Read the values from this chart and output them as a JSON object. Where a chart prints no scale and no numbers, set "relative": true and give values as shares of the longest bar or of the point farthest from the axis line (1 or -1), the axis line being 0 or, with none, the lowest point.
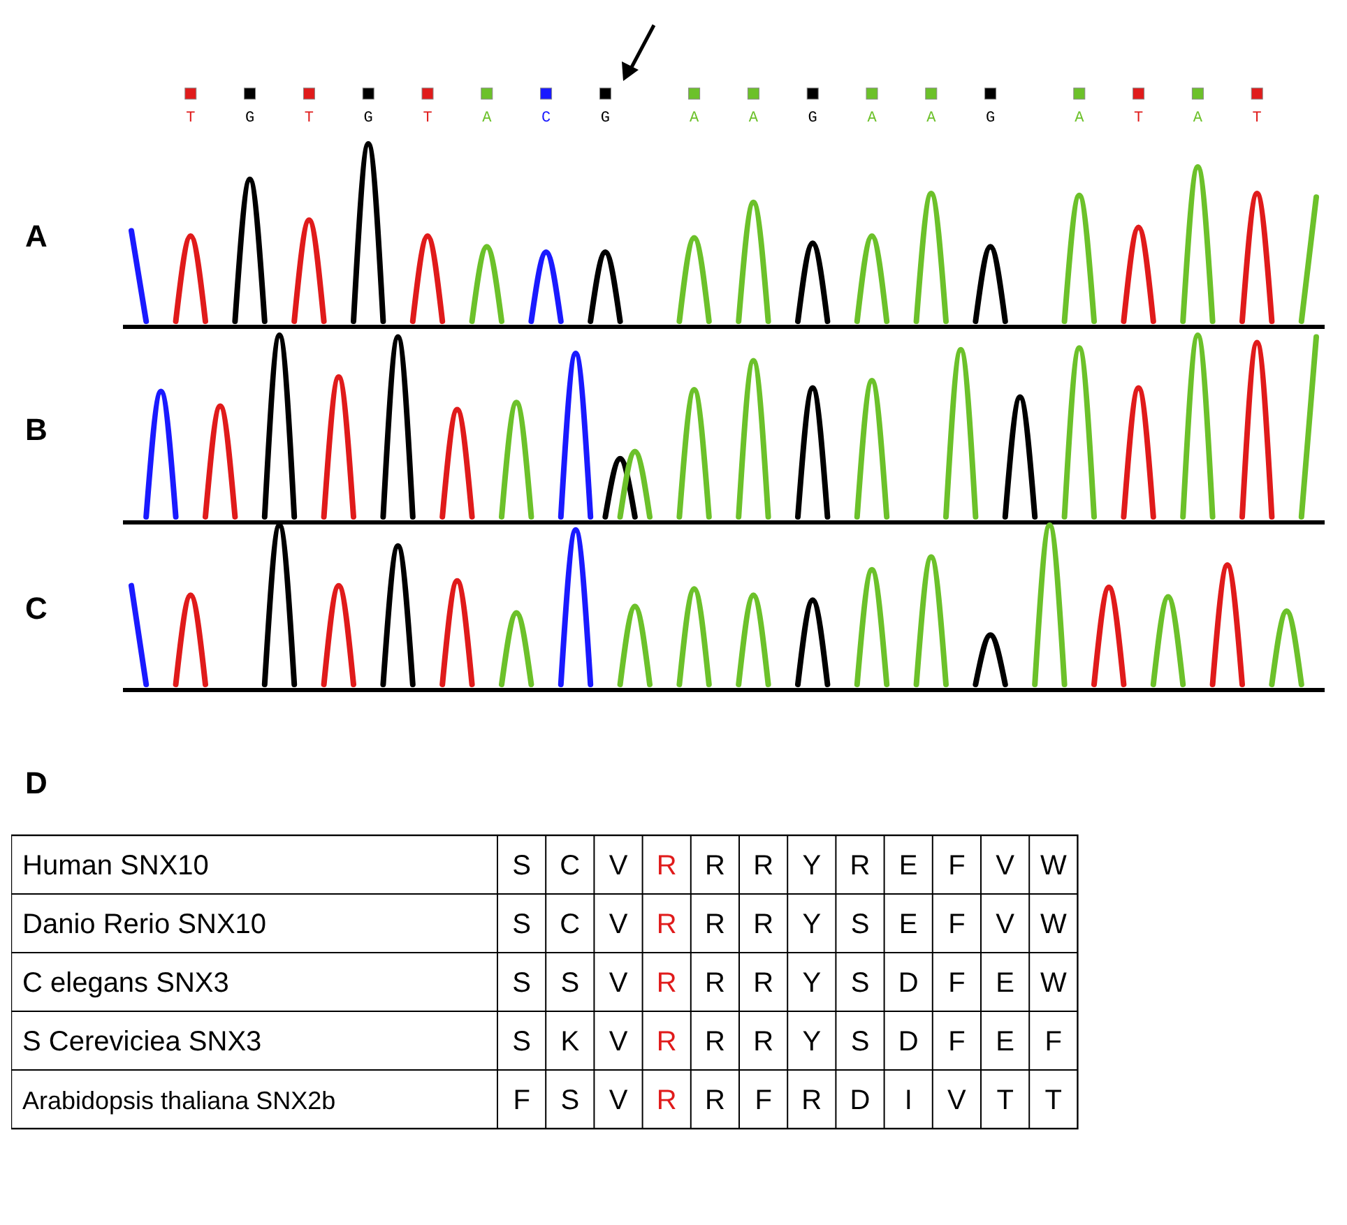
{
  "chart_data": [
    {
      "type": "line",
      "title": "A",
      "relative": true,
      "categories": [
        null,
        null,
        null,
        null,
        "T",
        null,
        null,
        null,
        "G",
        null,
        null,
        null,
        "T",
        null,
        null,
        null,
        "G",
        null,
        null,
        null,
        "T",
        null,
        null,
        null,
        "A",
        null,
        null,
        null,
        "C",
        null,
        null,
        null,
        "G",
        null,
        null,
        null,
        null,
        null,
        "A",
        null,
        null,
        null,
        "A",
        null,
        null,
        null,
        "G",
        null,
        null,
        null,
        "A",
        null,
        null,
        null,
        "A",
        null,
        null,
        null,
        "G",
        null,
        null,
        null,
        null,
        null,
        "A",
        null,
        null,
        null,
        "T",
        null,
        null,
        null,
        "A",
        null,
        null,
        null,
        "T",
        null,
        null,
        null,
        null
      ],
      "series": [
        {
          "color": "#1a1aff",
          "values": [
            0.51,
            0,
            null,
            null,
            null,
            null,
            null,
            null,
            null,
            null,
            null,
            null,
            null,
            null,
            null,
            null,
            null,
            null,
            null,
            null,
            null,
            null,
            null,
            null,
            null,
            null,
            null,
            0,
            0.39,
            0,
            null,
            null,
            null,
            null,
            null,
            null,
            null,
            null,
            null,
            null,
            null,
            null,
            null,
            null,
            null,
            null,
            null,
            null,
            null,
            null,
            null,
            null,
            null,
            null,
            null,
            null,
            null,
            null,
            null,
            null,
            null,
            null,
            null,
            null,
            null,
            null,
            null,
            null,
            null,
            null,
            null,
            null,
            null,
            null,
            null,
            null,
            null,
            null,
            null,
            null,
            null
          ]
        },
        {
          "color": "#e01b1b",
          "values": [
            null,
            null,
            null,
            0,
            0.48,
            0,
            null,
            null,
            null,
            null,
            null,
            0,
            0.57,
            0,
            null,
            null,
            null,
            null,
            null,
            0,
            0.48,
            0,
            null,
            null,
            null,
            null,
            null,
            null,
            null,
            null,
            null,
            null,
            null,
            null,
            null,
            null,
            null,
            null,
            null,
            null,
            null,
            null,
            null,
            null,
            null,
            null,
            null,
            null,
            null,
            null,
            null,
            null,
            null,
            null,
            null,
            null,
            null,
            null,
            null,
            null,
            null,
            null,
            null,
            null,
            null,
            null,
            null,
            0,
            0.53,
            0,
            null,
            null,
            null,
            null,
            null,
            0,
            0.72,
            0,
            null,
            null,
            null
          ]
        },
        {
          "color": "#000000",
          "values": [
            null,
            null,
            null,
            null,
            null,
            null,
            null,
            0,
            0.8,
            0,
            null,
            null,
            null,
            null,
            null,
            0,
            1,
            0,
            null,
            null,
            null,
            null,
            null,
            null,
            null,
            null,
            null,
            null,
            null,
            null,
            null,
            0,
            0.39,
            0,
            null,
            null,
            null,
            null,
            null,
            null,
            null,
            null,
            null,
            null,
            null,
            0,
            0.44,
            0,
            null,
            null,
            null,
            null,
            null,
            null,
            null,
            null,
            null,
            0,
            0.42,
            0,
            null,
            null,
            null,
            null,
            null,
            null,
            null,
            null,
            null,
            null,
            null,
            null,
            null,
            null,
            null,
            null,
            null,
            null,
            null,
            null,
            null
          ]
        },
        {
          "color": "#6cc12a",
          "values": [
            null,
            null,
            null,
            null,
            null,
            null,
            null,
            null,
            null,
            null,
            null,
            null,
            null,
            null,
            null,
            null,
            null,
            null,
            null,
            null,
            null,
            null,
            null,
            0,
            0.42,
            0,
            null,
            null,
            null,
            null,
            null,
            null,
            null,
            null,
            null,
            null,
            null,
            0,
            0.47,
            0,
            null,
            0,
            0.67,
            0,
            null,
            null,
            null,
            null,
            null,
            0,
            0.48,
            0,
            null,
            0,
            0.72,
            0,
            null,
            null,
            null,
            null,
            null,
            null,
            null,
            0,
            0.71,
            0,
            null,
            null,
            null,
            null,
            null,
            0,
            0.87,
            0,
            null,
            null,
            null,
            null,
            null,
            0,
            0.7
          ]
        }
      ]
    },
    {
      "type": "line",
      "title": "B",
      "relative": true,
      "categories": [
        null,
        null,
        null,
        null,
        null,
        null,
        null,
        null,
        null,
        null,
        null,
        null,
        null,
        null,
        null,
        null,
        null,
        null,
        null,
        null,
        null,
        null,
        null,
        null,
        null,
        null,
        null,
        null,
        null,
        null,
        null,
        null,
        null,
        null,
        null,
        null,
        null,
        null,
        null,
        null,
        null,
        null,
        null,
        null,
        null,
        null,
        null,
        null,
        null,
        null,
        null,
        null,
        null,
        null,
        null,
        null,
        null,
        null,
        null,
        null,
        null,
        null,
        null,
        null,
        null,
        null,
        null,
        null,
        null,
        null,
        null,
        null,
        null,
        null,
        null,
        null,
        null,
        null,
        null,
        null,
        null
      ],
      "series": [
        {
          "color": "#1a1aff",
          "values": [
            null,
            0,
            0.69,
            0,
            null,
            null,
            null,
            null,
            null,
            null,
            null,
            null,
            null,
            null,
            null,
            null,
            null,
            null,
            null,
            null,
            null,
            null,
            null,
            null,
            null,
            null,
            null,
            null,
            null,
            0,
            0.9,
            0,
            null,
            null,
            null,
            null,
            null,
            null,
            null,
            null,
            null,
            null,
            null,
            null,
            null,
            null,
            null,
            null,
            null,
            null,
            null,
            null,
            null,
            null,
            null,
            null,
            null,
            null,
            null,
            null,
            null,
            null,
            null,
            null,
            null,
            null,
            null,
            null,
            null,
            null,
            null,
            null,
            null,
            null,
            null,
            null,
            null,
            null,
            null,
            null,
            null
          ]
        },
        {
          "color": "#e01b1b",
          "values": [
            null,
            null,
            null,
            null,
            null,
            0,
            0.61,
            0,
            null,
            null,
            null,
            null,
            null,
            0,
            0.77,
            0,
            null,
            null,
            null,
            null,
            null,
            0,
            0.59,
            0,
            null,
            null,
            null,
            null,
            null,
            null,
            null,
            null,
            null,
            null,
            null,
            null,
            null,
            null,
            null,
            null,
            null,
            null,
            null,
            null,
            null,
            null,
            null,
            null,
            null,
            null,
            null,
            null,
            null,
            null,
            null,
            null,
            null,
            null,
            null,
            null,
            null,
            null,
            null,
            null,
            null,
            null,
            null,
            0,
            0.71,
            0,
            null,
            null,
            null,
            null,
            null,
            0,
            0.96,
            0,
            null,
            null,
            null
          ]
        },
        {
          "color": "#000000",
          "values": [
            null,
            null,
            null,
            null,
            null,
            null,
            null,
            null,
            null,
            0,
            1,
            0,
            null,
            null,
            null,
            null,
            null,
            0,
            0.99,
            0,
            null,
            null,
            null,
            null,
            null,
            null,
            null,
            null,
            null,
            null,
            null,
            null,
            0,
            0.32,
            0,
            null,
            null,
            null,
            null,
            null,
            null,
            null,
            null,
            null,
            null,
            0,
            0.71,
            0,
            null,
            null,
            null,
            null,
            null,
            null,
            null,
            null,
            null,
            null,
            null,
            0,
            0.66,
            0,
            null,
            null,
            null,
            null,
            null,
            null,
            null,
            null,
            null,
            null,
            null,
            null,
            null,
            null,
            null,
            null,
            null,
            null,
            null
          ]
        },
        {
          "color": "#6cc12a",
          "values": [
            null,
            null,
            null,
            null,
            null,
            null,
            null,
            null,
            null,
            null,
            null,
            null,
            null,
            null,
            null,
            null,
            null,
            null,
            null,
            null,
            null,
            null,
            null,
            null,
            null,
            0,
            0.63,
            0,
            null,
            null,
            null,
            null,
            null,
            0,
            0.36,
            0,
            null,
            0,
            0.7,
            0,
            null,
            0,
            0.86,
            0,
            null,
            null,
            null,
            null,
            null,
            0,
            0.75,
            0,
            null,
            null,
            null,
            0,
            0.92,
            0,
            null,
            null,
            null,
            null,
            null,
            0,
            0.93,
            0,
            null,
            null,
            null,
            null,
            null,
            0,
            1,
            0,
            null,
            null,
            null,
            null,
            null,
            0,
            0.99
          ]
        }
      ]
    },
    {
      "type": "line",
      "title": "C",
      "relative": true,
      "categories": [
        null,
        null,
        null,
        null,
        null,
        null,
        null,
        null,
        null,
        null,
        null,
        null,
        null,
        null,
        null,
        null,
        null,
        null,
        null,
        null,
        null,
        null,
        null,
        null,
        null,
        null,
        null,
        null,
        null,
        null,
        null,
        null,
        null,
        null,
        null,
        null,
        null,
        null,
        null,
        null,
        null,
        null,
        null,
        null,
        null,
        null,
        null,
        null,
        null,
        null,
        null,
        null,
        null,
        null,
        null,
        null,
        null,
        null,
        null,
        null,
        null,
        null,
        null,
        null,
        null,
        null,
        null,
        null,
        null,
        null,
        null,
        null,
        null,
        null,
        null,
        null,
        null,
        null,
        null,
        null,
        null
      ],
      "series": [
        {
          "color": "#1a1aff",
          "values": [
            0.62,
            0,
            null,
            null,
            null,
            null,
            null,
            null,
            null,
            null,
            null,
            null,
            null,
            null,
            null,
            null,
            null,
            null,
            null,
            null,
            null,
            null,
            null,
            null,
            null,
            null,
            null,
            null,
            null,
            0,
            0.97,
            0,
            null,
            null,
            null,
            null,
            null,
            null,
            null,
            null,
            null,
            null,
            null,
            null,
            null,
            null,
            null,
            null,
            null,
            null,
            null,
            null,
            null,
            null,
            null,
            null,
            null,
            null,
            null,
            null,
            null,
            null,
            null,
            null,
            null,
            null,
            null,
            null,
            null,
            null,
            null,
            null,
            null,
            null,
            null,
            null,
            null,
            null,
            null,
            null,
            null
          ]
        },
        {
          "color": "#e01b1b",
          "values": [
            null,
            null,
            null,
            0,
            0.56,
            0,
            null,
            null,
            null,
            null,
            null,
            null,
            null,
            0,
            0.62,
            0,
            null,
            null,
            null,
            null,
            null,
            0,
            0.65,
            0,
            null,
            null,
            null,
            null,
            null,
            null,
            null,
            null,
            null,
            null,
            null,
            null,
            null,
            null,
            null,
            null,
            null,
            null,
            null,
            null,
            null,
            null,
            null,
            null,
            null,
            null,
            null,
            null,
            null,
            null,
            null,
            null,
            null,
            null,
            null,
            null,
            null,
            null,
            null,
            null,
            null,
            0,
            0.61,
            0,
            null,
            null,
            null,
            null,
            null,
            0,
            0.75,
            0,
            null,
            null,
            null,
            null,
            null
          ]
        },
        {
          "color": "#000000",
          "values": [
            null,
            null,
            null,
            null,
            null,
            null,
            null,
            null,
            null,
            0,
            1,
            0,
            null,
            null,
            null,
            null,
            null,
            0,
            0.87,
            0,
            null,
            null,
            null,
            null,
            null,
            null,
            null,
            null,
            null,
            null,
            null,
            null,
            null,
            null,
            null,
            null,
            null,
            null,
            null,
            null,
            null,
            null,
            null,
            null,
            null,
            0,
            0.53,
            0,
            null,
            null,
            null,
            null,
            null,
            null,
            null,
            null,
            null,
            0,
            0.31,
            0,
            null,
            null,
            null,
            null,
            null,
            null,
            null,
            null,
            null,
            null,
            null,
            null,
            null,
            null,
            null,
            null,
            null,
            null,
            null,
            null,
            null
          ]
        },
        {
          "color": "#6cc12a",
          "values": [
            null,
            null,
            null,
            null,
            null,
            null,
            null,
            null,
            null,
            null,
            null,
            null,
            null,
            null,
            null,
            null,
            null,
            null,
            null,
            null,
            null,
            null,
            null,
            null,
            null,
            0,
            0.45,
            0,
            null,
            null,
            null,
            null,
            null,
            0,
            0.49,
            0,
            null,
            0,
            0.6,
            0,
            null,
            0,
            0.56,
            0,
            null,
            null,
            null,
            null,
            null,
            0,
            0.72,
            0,
            null,
            0,
            0.8,
            0,
            null,
            null,
            null,
            null,
            null,
            0,
            1,
            0,
            null,
            null,
            null,
            null,
            null,
            0,
            0.55,
            0,
            null,
            null,
            null,
            null,
            null,
            0,
            0.46,
            0,
            null
          ]
        }
      ]
    },
    {
      "type": "other",
      "title": "D",
      "categories": [
        "Human SNX10",
        "Danio Rerio SNX10",
        "C  elegans SNX3",
        "S  Cereviciea SNX3",
        "Arabidopsis thaliana SNX2b"
      ],
      "colors": [
        "#000000",
        "#000000",
        "#000000",
        "#e01b1b",
        "#000000",
        "#000000",
        "#000000",
        "#000000",
        "#000000",
        "#000000",
        "#000000",
        "#000000"
      ],
      "cell_labels": [
        [
          "S",
          "C",
          "V",
          "R",
          "R",
          "R",
          "Y",
          "R",
          "E",
          "F",
          "V",
          "W"
        ],
        [
          "S",
          "C",
          "V",
          "R",
          "R",
          "R",
          "Y",
          "S",
          "E",
          "F",
          "V",
          "W"
        ],
        [
          "S",
          "S",
          "V",
          "R",
          "R",
          "R",
          "Y",
          "S",
          "D",
          "F",
          "E",
          "W"
        ],
        [
          "S",
          "K",
          "V",
          "R",
          "R",
          "R",
          "Y",
          "S",
          "D",
          "F",
          "E",
          "F"
        ],
        [
          "F",
          "S",
          "V",
          "R",
          "R",
          "F",
          "R",
          "D",
          "I",
          "V",
          "T",
          "T"
        ]
      ]
    }
  ]
}
